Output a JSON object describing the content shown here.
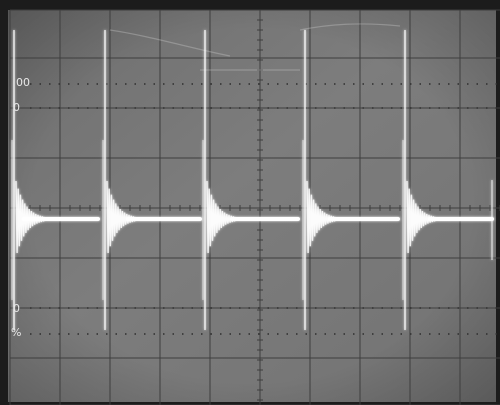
{
  "screen": {
    "graticule_labels": {
      "top_100": "00",
      "top_90": "0",
      "bottom_10": "0",
      "bottom_0": "%"
    }
  },
  "colors": {
    "bezel": "#1a1a1a",
    "screen_bg": "#747474",
    "grid": "#3e3e3e",
    "trace": "#ffffff"
  }
}
